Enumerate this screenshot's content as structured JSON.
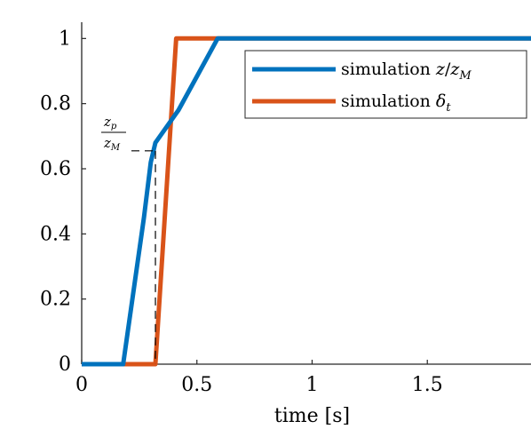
{
  "chart_data": {
    "type": "line",
    "xlabel": "time [s]",
    "xlim": [
      0,
      1.95
    ],
    "ylim": [
      0,
      1.05
    ],
    "grid": false,
    "x_ticks": [
      0,
      0.5,
      1,
      1.5
    ],
    "x_tick_labels": [
      "0",
      "0.5",
      "1",
      "1.5"
    ],
    "y_ticks": [
      0,
      0.2,
      0.4,
      0.6,
      0.8,
      1
    ],
    "y_tick_labels": [
      "0",
      "0.2",
      "0.4",
      "0.6",
      "0.8",
      "1"
    ],
    "legend_position": "top-right",
    "series": [
      {
        "name": "simulation z/z_M",
        "legend_label": {
          "main": "simulation ",
          "var1": "z",
          "sep": "/",
          "var2": "z",
          "sub": "M"
        },
        "color": "#0072BD",
        "x": [
          0,
          0.18,
          0.27,
          0.3,
          0.32,
          0.42,
          0.59,
          1.95
        ],
        "y": [
          0,
          0,
          0.45,
          0.62,
          0.68,
          0.78,
          1,
          1
        ]
      },
      {
        "name": "simulation δ_t",
        "legend_label": {
          "main": "simulation ",
          "var1": "δ",
          "sub": "t"
        },
        "color": "#D95319",
        "x": [
          0,
          0.32,
          0.41,
          0.59,
          1.95
        ],
        "y": [
          0,
          0,
          1,
          1,
          1
        ]
      }
    ],
    "annotations": [
      {
        "type": "fraction",
        "numerator": {
          "var": "z",
          "sub": "p"
        },
        "denominator": {
          "var": "z",
          "sub": "M"
        },
        "y": 0.655,
        "x": 0.32,
        "style": "dashed"
      }
    ]
  }
}
